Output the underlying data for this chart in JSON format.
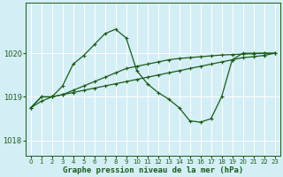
{
  "xlabel": "Graphe pression niveau de la mer (hPa)",
  "bg_color": "#d4eef5",
  "grid_color": "#ffffff",
  "line_color": "#1a5c1a",
  "xlim": [
    -0.5,
    23.5
  ],
  "ylim": [
    1017.65,
    1021.15
  ],
  "yticks": [
    1018,
    1019,
    1020
  ],
  "xticks": [
    0,
    1,
    2,
    3,
    4,
    5,
    6,
    7,
    8,
    9,
    10,
    11,
    12,
    13,
    14,
    15,
    16,
    17,
    18,
    19,
    20,
    21,
    22,
    23
  ],
  "line1_x": [
    0,
    1,
    2,
    3,
    4,
    5,
    6,
    7,
    8,
    9,
    10,
    11,
    12,
    13,
    14,
    15,
    16,
    17,
    18,
    19,
    20,
    21,
    22,
    23
  ],
  "line1_y": [
    1018.75,
    1019.0,
    1019.0,
    1019.05,
    1019.1,
    1019.15,
    1019.2,
    1019.25,
    1019.3,
    1019.35,
    1019.4,
    1019.45,
    1019.5,
    1019.55,
    1019.6,
    1019.65,
    1019.7,
    1019.75,
    1019.8,
    1019.85,
    1019.9,
    1019.92,
    1019.95,
    1020.0
  ],
  "line2_x": [
    0,
    1,
    2,
    3,
    4,
    5,
    6,
    7,
    8,
    9,
    10,
    11,
    12,
    13,
    14,
    15,
    16,
    17,
    18,
    19,
    20,
    21,
    22,
    23
  ],
  "line2_y": [
    1018.75,
    1019.0,
    1019.0,
    1019.05,
    1019.15,
    1019.25,
    1019.35,
    1019.45,
    1019.55,
    1019.65,
    1019.7,
    1019.75,
    1019.8,
    1019.85,
    1019.88,
    1019.9,
    1019.92,
    1019.94,
    1019.96,
    1019.97,
    1019.98,
    1019.99,
    1020.0,
    1020.0
  ],
  "line3_x": [
    0,
    1,
    2,
    3,
    4,
    5,
    6,
    7,
    8,
    9,
    10,
    11,
    12,
    13,
    14,
    15,
    16,
    17,
    18,
    19,
    20,
    21,
    22,
    23
  ],
  "line3_y": [
    1018.75,
    1018.9,
    1019.0,
    1019.25,
    1019.75,
    1019.95,
    1020.2,
    1020.45,
    1020.55,
    1020.35,
    1019.6,
    1019.3,
    1019.1,
    1018.95,
    1018.75,
    1018.45,
    1018.42,
    1018.5,
    1019.0,
    1019.85,
    1020.0,
    1020.0,
    1020.0,
    1020.0
  ]
}
